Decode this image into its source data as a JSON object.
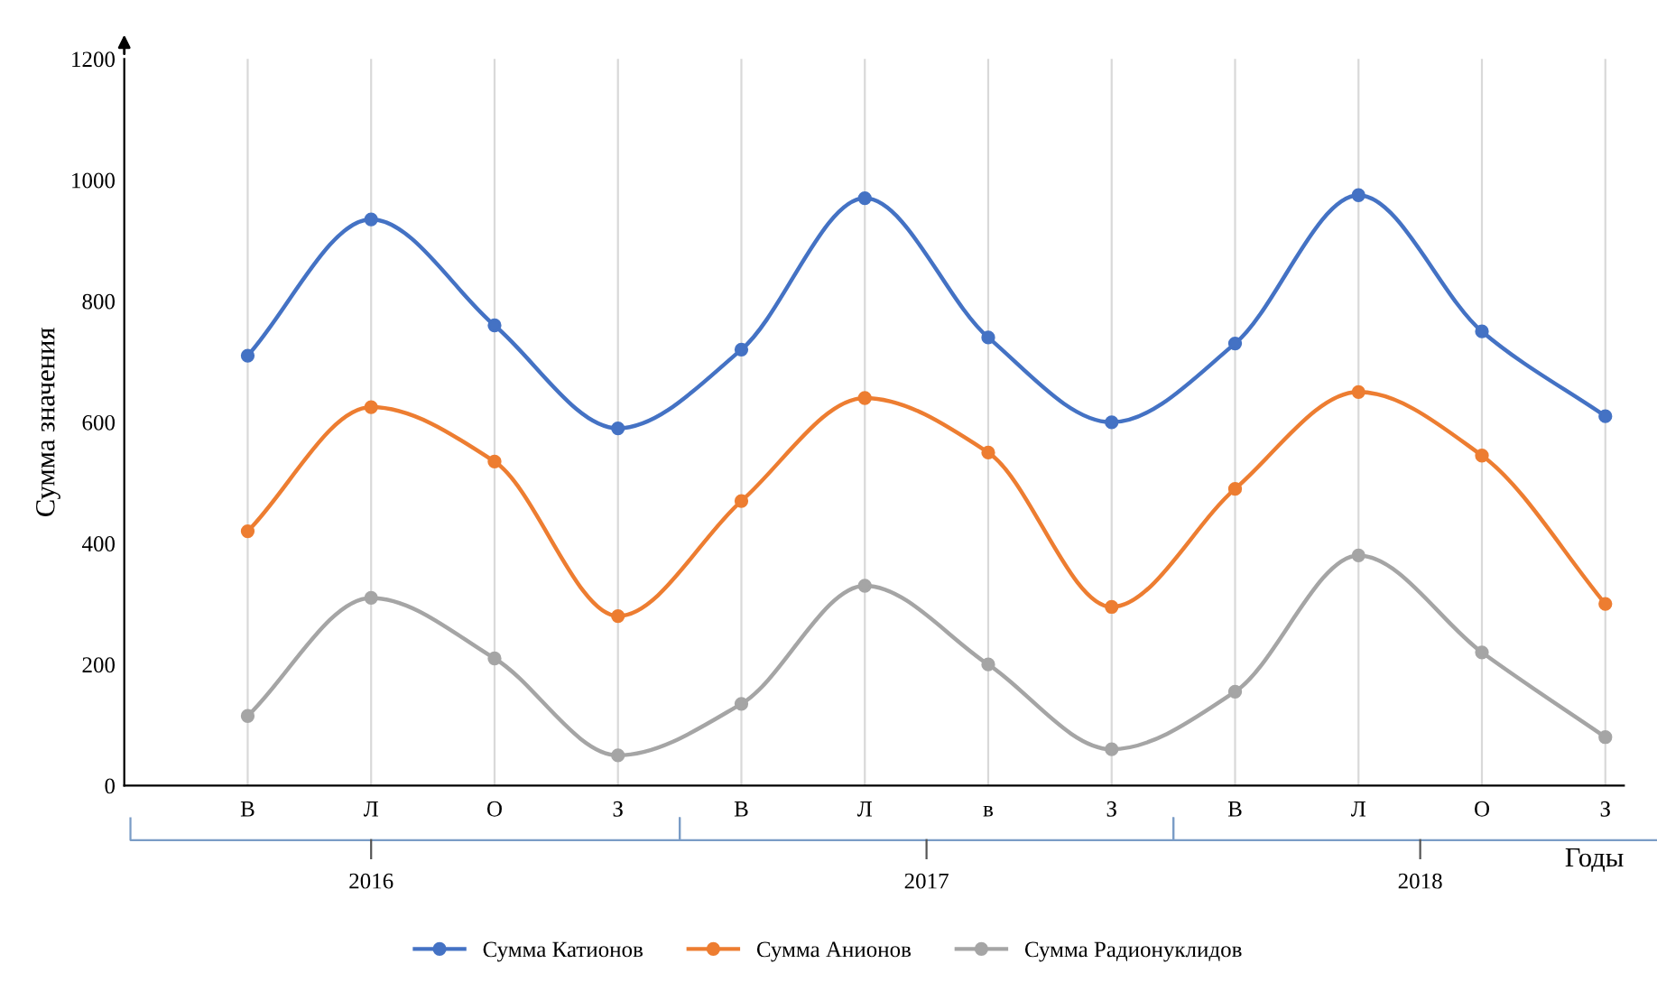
{
  "chart_data": {
    "type": "line",
    "ylabel": "Сумма значения",
    "xlabel": "Годы",
    "categories": [
      "В",
      "Л",
      "О",
      "З",
      "В",
      "Л",
      "в",
      "З",
      "В",
      "Л",
      "О",
      "З"
    ],
    "annotations": [
      "2016",
      "2017",
      "2018"
    ],
    "series": [
      {
        "name": "Сумма Катионов",
        "color": "#4472c4",
        "values": [
          710,
          935,
          760,
          590,
          720,
          970,
          740,
          600,
          730,
          975,
          750,
          610
        ]
      },
      {
        "name": "Сумма Анионов",
        "color": "#ed7d31",
        "values": [
          420,
          625,
          535,
          280,
          470,
          640,
          550,
          295,
          490,
          650,
          545,
          300
        ]
      },
      {
        "name": "Сумма Радионуклидов",
        "color": "#a5a5a5",
        "values": [
          115,
          310,
          210,
          50,
          135,
          330,
          200,
          60,
          155,
          380,
          220,
          80
        ]
      }
    ],
    "ylim": [
      0,
      1200
    ],
    "yticks": [
      0,
      200,
      400,
      600,
      800,
      1000,
      1200
    ],
    "grid": "x",
    "legend": "bottom",
    "marker": "circle",
    "line_style": "solid"
  }
}
